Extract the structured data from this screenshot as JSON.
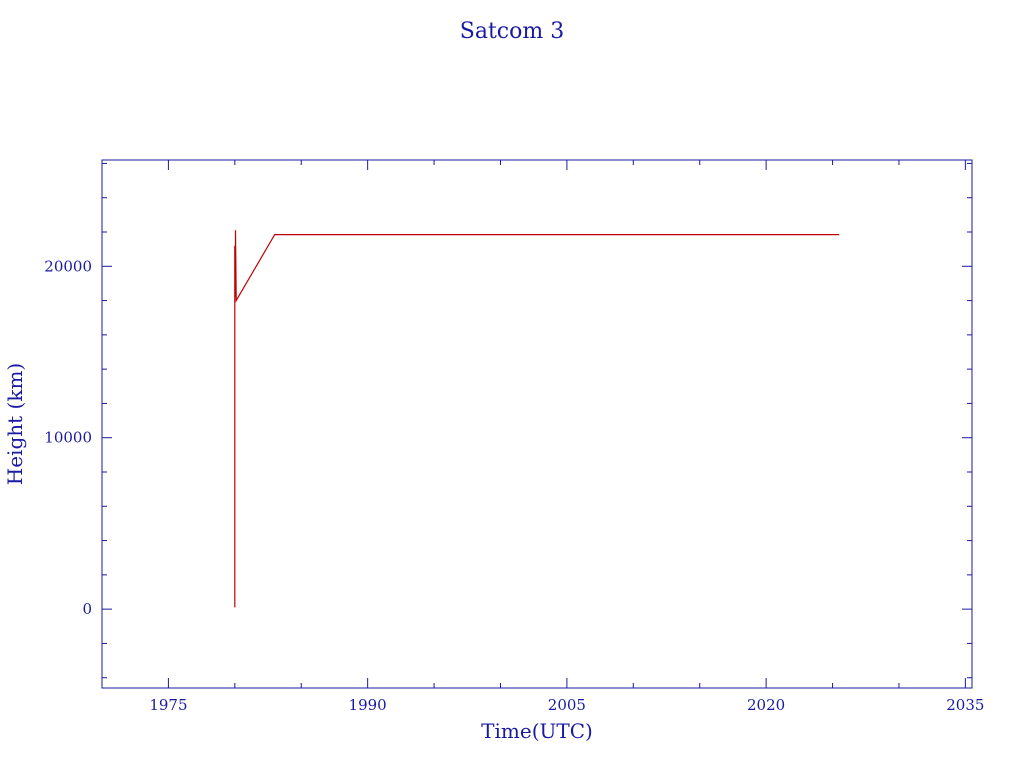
{
  "chart_data": {
    "type": "line",
    "title": "Satcom 3",
    "xlabel": "Time(UTC)",
    "ylabel": "Height (km)",
    "xlim": [
      1970,
      2035.5
    ],
    "ylim": [
      -4600,
      26200
    ],
    "x_ticks": [
      1975,
      1990,
      2005,
      2020,
      2035
    ],
    "x_tick_labels": [
      "1975",
      "1990",
      "2005",
      "2020",
      "2035"
    ],
    "y_ticks": [
      0,
      10000,
      20000
    ],
    "y_tick_labels": [
      "0",
      "10000",
      "20000"
    ],
    "grid": false,
    "series": [
      {
        "color": "#c00000",
        "x": [
          1980.0,
          1980.0,
          1980.05,
          1980.05,
          1980.1,
          1983.0,
          2025.5
        ],
        "y": [
          100,
          21200,
          18200,
          22100,
          18000,
          21850,
          21850
        ]
      }
    ]
  }
}
